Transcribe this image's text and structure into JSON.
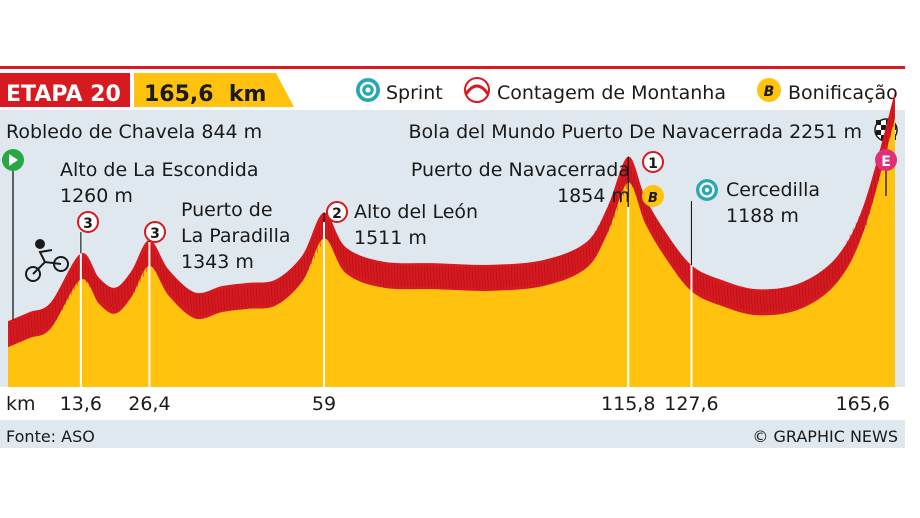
{
  "header": {
    "stage_label": "ETAPA 20",
    "distance_label": "165,6  km",
    "legend": [
      {
        "name": "sprint-legend",
        "label": "Sprint",
        "icon": "sprint-icon"
      },
      {
        "name": "climb-legend",
        "label": "Contagem de Montanha",
        "icon": "climb-icon"
      },
      {
        "name": "bonus-legend",
        "label": "Bonificação",
        "icon": "bonus-icon",
        "symbol": "B"
      }
    ]
  },
  "start_label": "Robledo de Chavela 844 m",
  "finish_label": "Bola del Mundo Puerto De Navacerrada 2251 m",
  "start_marker": "start-icon",
  "finish_marker": "finish-icon",
  "finish_marker_letter": "E",
  "annotations": [
    {
      "name": "alto-escondida",
      "km": 13.6,
      "line1": "Alto de La Escondida",
      "line2": "1260 m",
      "category": "3"
    },
    {
      "name": "puerto-paradilla",
      "km": 26.4,
      "line1": "Puerto de",
      "line2": "La Paradilla",
      "line3": "1343 m",
      "category": "3"
    },
    {
      "name": "alto-leon",
      "km": 59,
      "line1": "Alto del León",
      "line2": "1511 m",
      "category": "2"
    },
    {
      "name": "puerto-navacerrada",
      "km": 115.8,
      "line1": "Puerto de Navacerrada",
      "line2": "1854 m",
      "category": "1",
      "bonus": "B"
    },
    {
      "name": "cercedilla",
      "km": 127.6,
      "line1": "Cercedilla",
      "line2": "1188 m",
      "sprint": true
    }
  ],
  "chart_data": {
    "type": "area",
    "x_axis_label": "km",
    "x_ticks": [
      {
        "value": 13.6,
        "label": "13,6"
      },
      {
        "value": 26.4,
        "label": "26,4"
      },
      {
        "value": 59,
        "label": "59"
      },
      {
        "value": 115.8,
        "label": "115,8"
      },
      {
        "value": 127.6,
        "label": "127,6"
      },
      {
        "value": 165.6,
        "label": "165,6"
      }
    ],
    "xlim": [
      0,
      165.6
    ],
    "ylim": [
      600,
      2300
    ],
    "points": [
      [
        0,
        844
      ],
      [
        4,
        900
      ],
      [
        8,
        960
      ],
      [
        13.6,
        1260
      ],
      [
        17,
        1110
      ],
      [
        20,
        1050
      ],
      [
        23,
        1150
      ],
      [
        26.4,
        1343
      ],
      [
        30,
        1160
      ],
      [
        35,
        1020
      ],
      [
        40,
        1060
      ],
      [
        45,
        1080
      ],
      [
        50,
        1100
      ],
      [
        55,
        1250
      ],
      [
        59,
        1511
      ],
      [
        63,
        1300
      ],
      [
        70,
        1210
      ],
      [
        80,
        1200
      ],
      [
        90,
        1190
      ],
      [
        100,
        1220
      ],
      [
        108,
        1330
      ],
      [
        112,
        1550
      ],
      [
        115.8,
        1854
      ],
      [
        119,
        1600
      ],
      [
        123,
        1380
      ],
      [
        127.6,
        1188
      ],
      [
        133,
        1100
      ],
      [
        140,
        1040
      ],
      [
        148,
        1080
      ],
      [
        155,
        1250
      ],
      [
        160,
        1580
      ],
      [
        165.6,
        2251
      ]
    ],
    "colors": {
      "profile_fill": "#ffc20e",
      "profile_band": "#d71920",
      "band_dark": "#9b1014"
    }
  },
  "footer": {
    "source": "Fonte: ASO",
    "credit": "© GRAPHIC NEWS"
  }
}
